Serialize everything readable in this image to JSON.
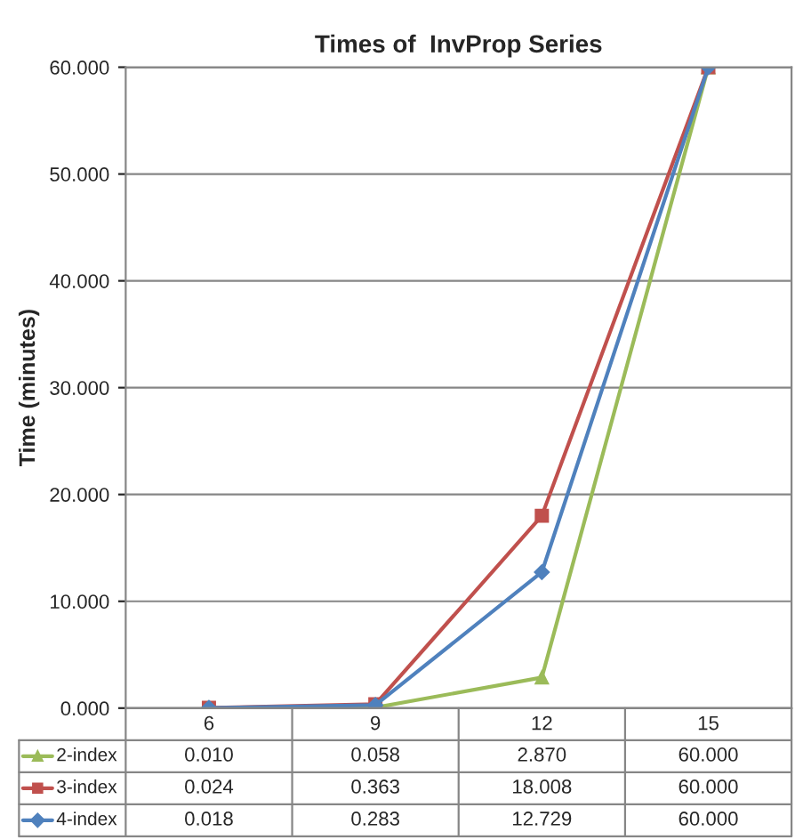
{
  "chart_data": {
    "type": "line",
    "title": "Times of  InvProp Series",
    "ylabel": "Time (minutes)",
    "categories": [
      "6",
      "9",
      "12",
      "15"
    ],
    "ylim": [
      0,
      60
    ],
    "yticks": [
      {
        "value": 0,
        "label": "0.000"
      },
      {
        "value": 10,
        "label": "10.000"
      },
      {
        "value": 20,
        "label": "20.000"
      },
      {
        "value": 30,
        "label": "30.000"
      },
      {
        "value": 40,
        "label": "40.000"
      },
      {
        "value": 50,
        "label": "50.000"
      },
      {
        "value": 60,
        "label": "60.000"
      }
    ],
    "grid": "y",
    "legend": "bottom",
    "series": [
      {
        "name": "2-index",
        "color": "#9bbb59",
        "marker": "triangle",
        "values": [
          0.01,
          0.058,
          2.87,
          60.0
        ],
        "value_labels": [
          "0.010",
          "0.058",
          "2.870",
          "60.000"
        ]
      },
      {
        "name": "3-index",
        "color": "#c0504d",
        "marker": "square",
        "values": [
          0.024,
          0.363,
          18.008,
          60.0
        ],
        "value_labels": [
          "0.024",
          "0.363",
          "18.008",
          "60.000"
        ]
      },
      {
        "name": "4-index",
        "color": "#4f81bd",
        "marker": "diamond",
        "values": [
          0.018,
          0.283,
          12.729,
          60.0
        ],
        "value_labels": [
          "0.018",
          "0.283",
          "12.729",
          "60.000"
        ]
      }
    ]
  }
}
